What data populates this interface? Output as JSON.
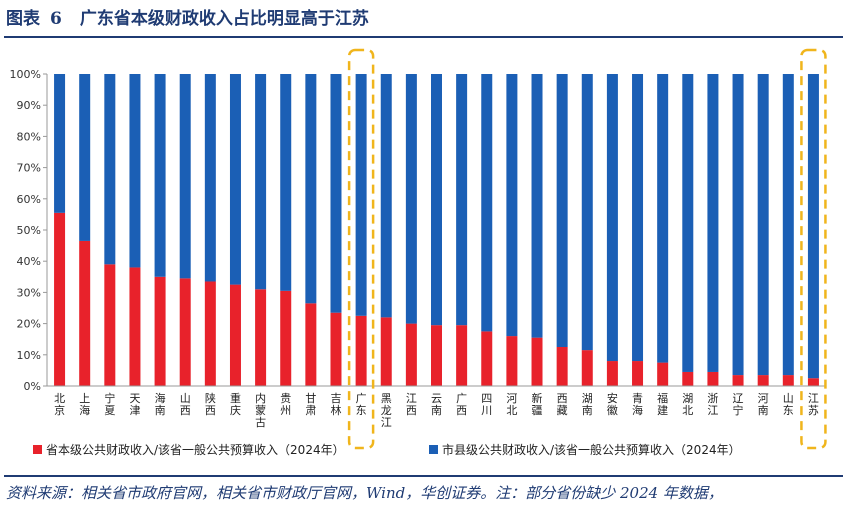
{
  "title": {
    "prefix": "图表",
    "number": "6",
    "text": "广东省本级财政收入占比明显高于江苏"
  },
  "source": "资料来源：相关省市政府官网，相关省市财政厅官网，Wind，华创证券。注：部分省份缺少 2024 年数据，",
  "colors": {
    "series1": "#e8222b",
    "series2": "#1b5fb5",
    "highlight": "#f0b51c",
    "axis": "#999999"
  },
  "chart_data": {
    "type": "bar",
    "stacked": true,
    "ylim": [
      0,
      100
    ],
    "y_ticks": [
      "0%",
      "10%",
      "20%",
      "30%",
      "40%",
      "50%",
      "60%",
      "70%",
      "80%",
      "90%",
      "100%"
    ],
    "categories": [
      "北京",
      "上海",
      "宁夏",
      "天津",
      "海南",
      "山西",
      "陕西",
      "重庆",
      "内蒙古",
      "贵州",
      "甘肃",
      "吉林",
      "广东",
      "黑龙江",
      "江西",
      "云南",
      "广西",
      "四川",
      "河北",
      "新疆",
      "西藏",
      "湖南",
      "安徽",
      "青海",
      "福建",
      "湖北",
      "浙江",
      "辽宁",
      "河南",
      "山东",
      "江苏"
    ],
    "highlighted": [
      "广东",
      "江苏"
    ],
    "series": [
      {
        "name": "省本级公共财政收入/该省一般公共预算收入（2024年）",
        "values": [
          55.5,
          46.5,
          39,
          38,
          35,
          34.5,
          33.5,
          32.5,
          31,
          30.5,
          26.5,
          23.5,
          22.5,
          22,
          20,
          19.5,
          19.5,
          17.5,
          16,
          15.5,
          12.5,
          11.5,
          8,
          8,
          7.5,
          4.5,
          4.5,
          3.5,
          3.5,
          3.5,
          2.5
        ]
      },
      {
        "name": "市县级公共财政收入/该省一般公共预算收入（2024年）",
        "values": [
          44.5,
          53.5,
          61,
          62,
          65,
          65.5,
          66.5,
          67.5,
          69,
          69.5,
          73.5,
          76.5,
          77.5,
          78,
          80,
          80.5,
          80.5,
          82.5,
          84,
          84.5,
          87.5,
          88.5,
          92,
          92,
          92.5,
          95.5,
          95.5,
          96.5,
          96.5,
          96.5,
          97.5
        ]
      }
    ],
    "legend_position": "bottom"
  }
}
